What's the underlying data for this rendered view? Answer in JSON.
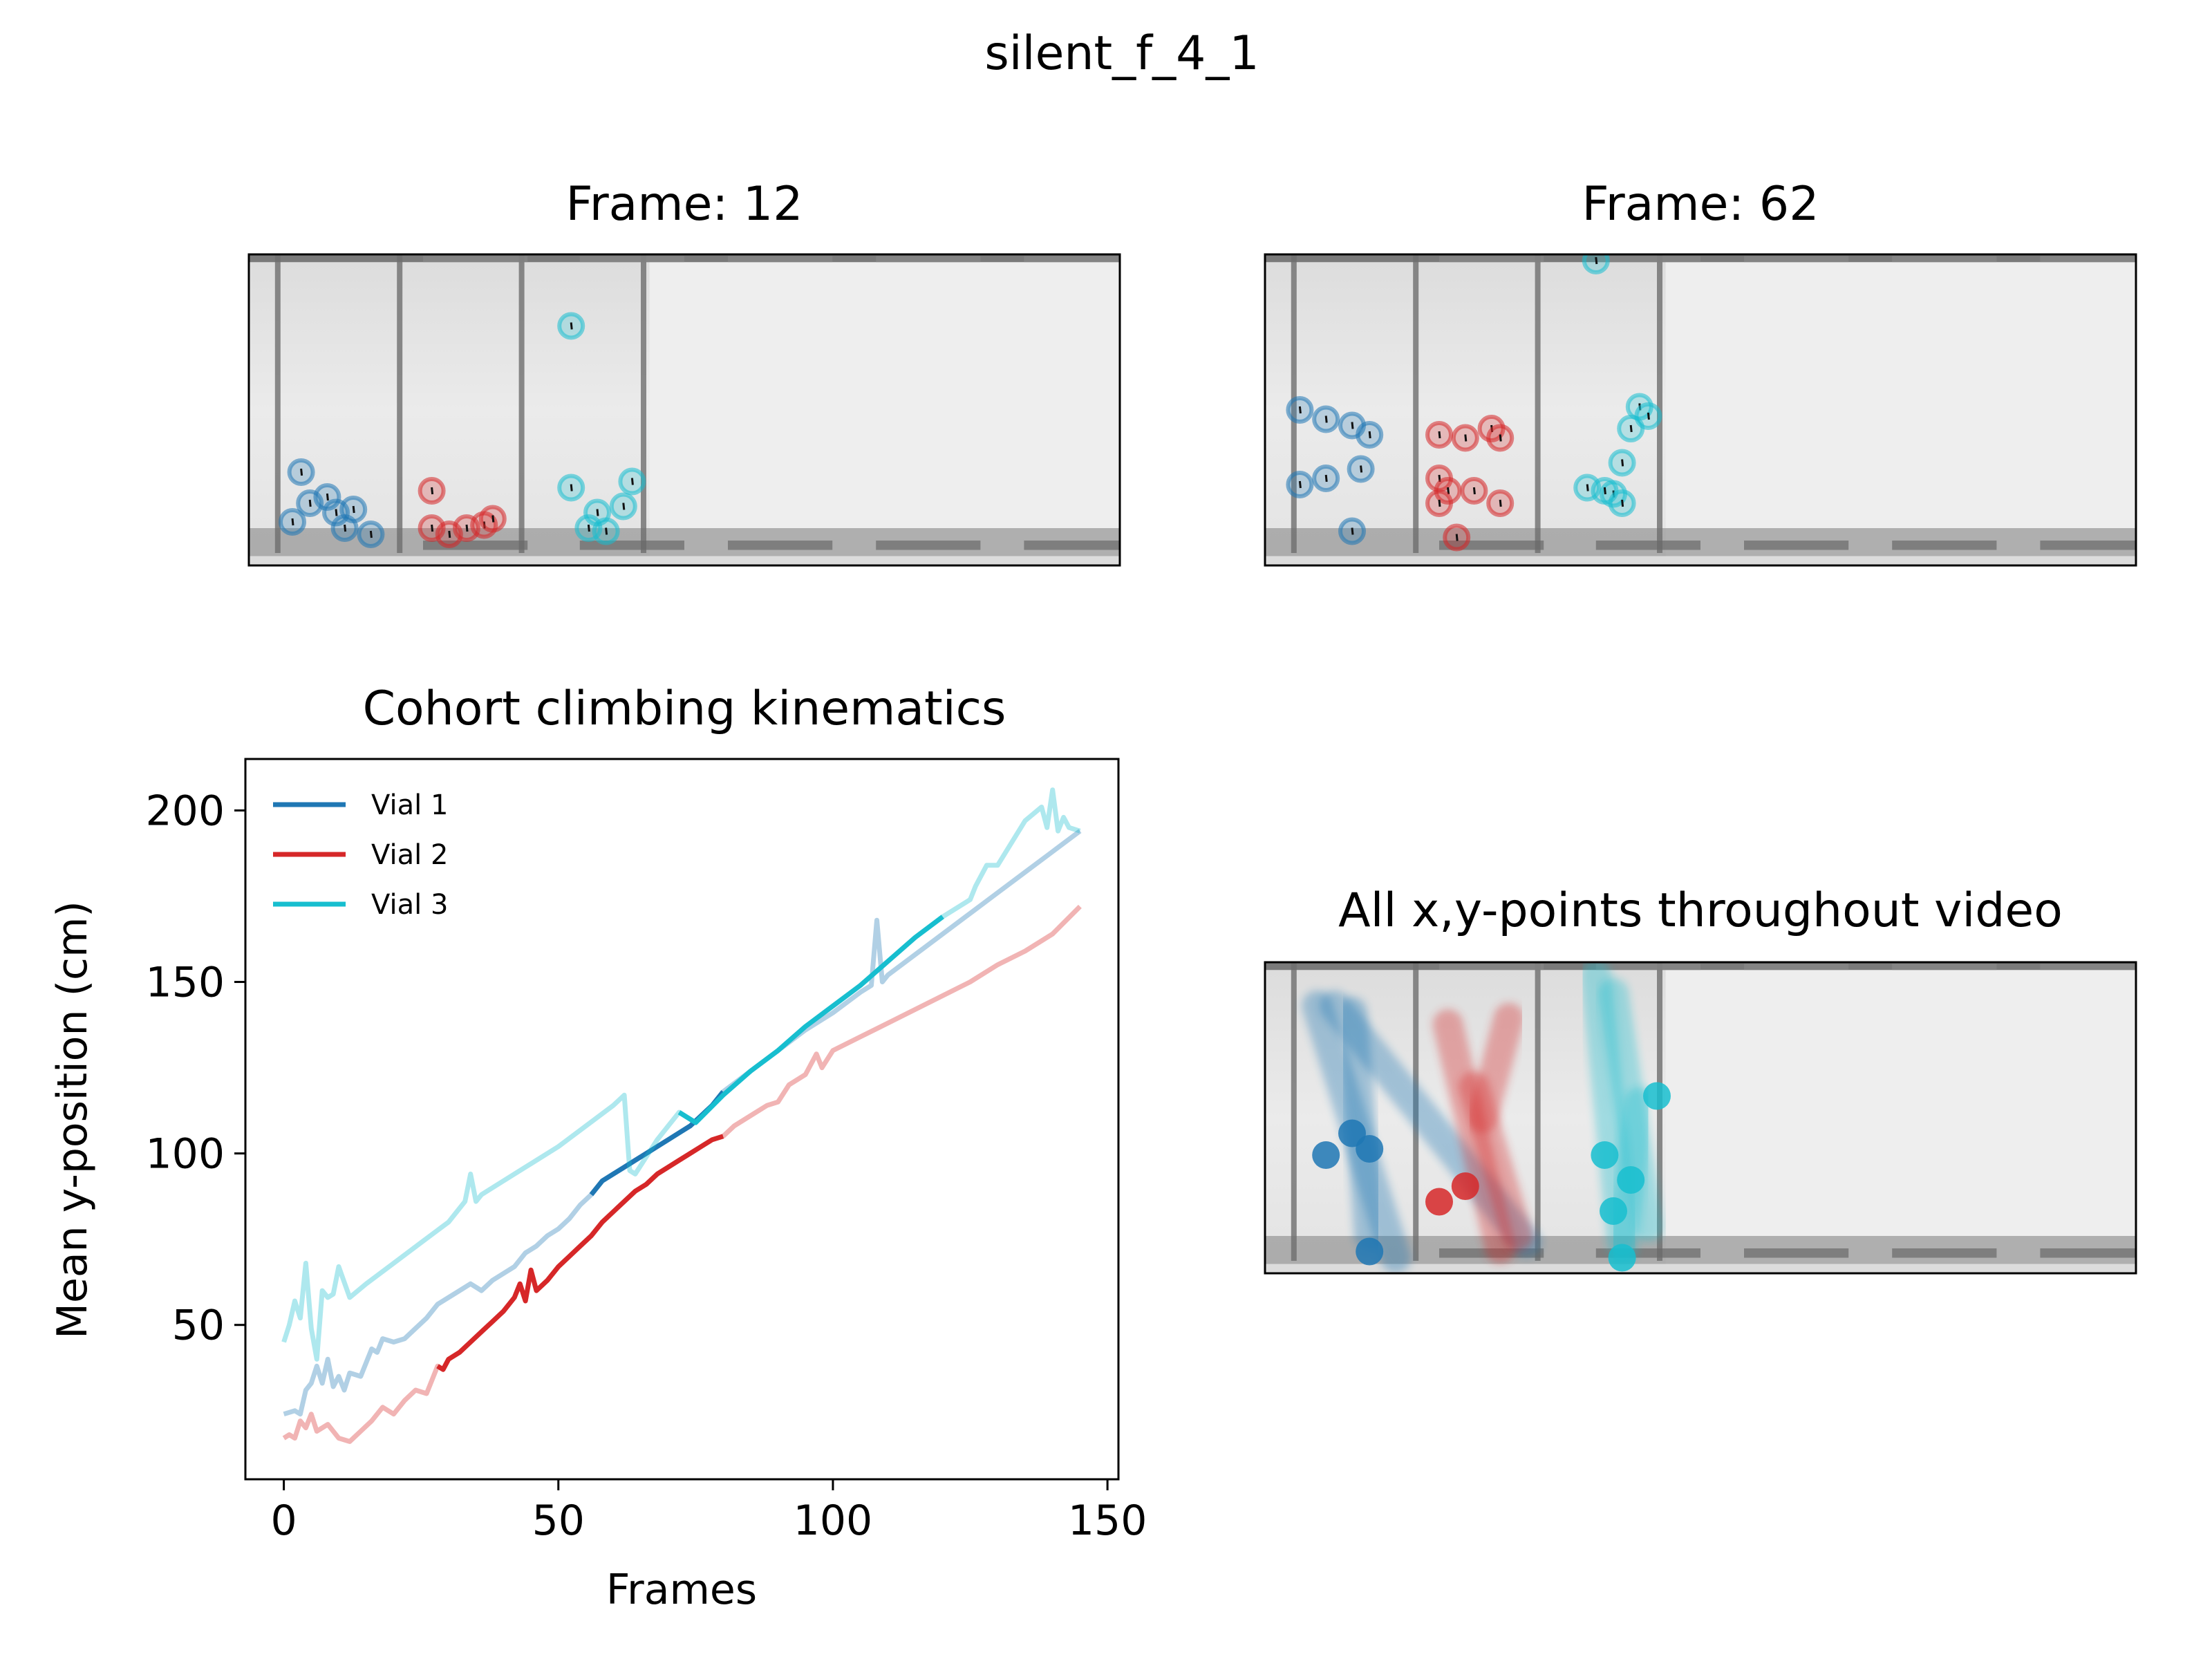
{
  "figure": {
    "suptitle": "silent_f_4_1",
    "panel_frame_a": {
      "title": "Frame: 12"
    },
    "panel_frame_b": {
      "title": "Frame: 62"
    },
    "panel_all_points": {
      "title": "All x,y-points throughout video"
    }
  },
  "colors": {
    "vial1": "#1f77b4",
    "vial2": "#d62728",
    "vial3": "#17becf"
  },
  "icons": {
    "fly_marker": "circle-marker-icon",
    "vial": "vial-tube-icon"
  },
  "chart_data": {
    "type": "line",
    "title": "Cohort climbing kinematics",
    "xlabel": "Frames",
    "ylabel": "Mean y-position (cm)",
    "xlim": [
      -7,
      152
    ],
    "ylim": [
      5,
      215
    ],
    "xticks": [
      0,
      50,
      100,
      150
    ],
    "yticks": [
      50,
      100,
      150,
      200
    ],
    "grid": false,
    "legend_position": "top-left",
    "series": [
      {
        "name": "Vial 1",
        "color": "#1f77b4",
        "x": [
          0,
          2,
          3,
          4,
          5,
          6,
          7,
          8,
          9,
          10,
          11,
          12,
          14,
          16,
          17,
          18,
          20,
          22,
          24,
          26,
          28,
          30,
          32,
          34,
          36,
          38,
          40,
          42,
          44,
          46,
          48,
          50,
          52,
          54,
          56,
          58,
          60,
          62,
          64,
          66,
          68,
          70,
          72,
          74,
          76,
          78,
          80,
          85,
          90,
          95,
          100,
          105,
          107,
          108,
          109,
          110,
          115,
          120,
          125,
          130,
          135,
          140,
          145
        ],
        "y": [
          24,
          25,
          24,
          31,
          33,
          38,
          33,
          40,
          32,
          35,
          31,
          36,
          35,
          43,
          42,
          46,
          45,
          46,
          49,
          52,
          56,
          58,
          60,
          62,
          60,
          63,
          65,
          67,
          71,
          73,
          76,
          78,
          81,
          85,
          88,
          92,
          94,
          96,
          98,
          100,
          102,
          104,
          106,
          108,
          111,
          114,
          118,
          124,
          130,
          136,
          141,
          147,
          149,
          168,
          150,
          152,
          158,
          164,
          170,
          176,
          182,
          188,
          194
        ],
        "highlight_range": [
          56,
          80
        ]
      },
      {
        "name": "Vial 2",
        "color": "#d62728",
        "x": [
          0,
          1,
          2,
          3,
          4,
          5,
          6,
          8,
          10,
          12,
          14,
          16,
          18,
          20,
          22,
          24,
          26,
          27,
          28,
          29,
          30,
          32,
          34,
          36,
          38,
          40,
          42,
          43,
          44,
          45,
          46,
          48,
          50,
          52,
          54,
          56,
          58,
          60,
          62,
          64,
          66,
          68,
          70,
          72,
          74,
          76,
          78,
          80,
          82,
          85,
          88,
          90,
          92,
          95,
          97,
          98,
          100,
          105,
          110,
          115,
          120,
          125,
          130,
          135,
          140,
          145
        ],
        "y": [
          17,
          18,
          17,
          22,
          20,
          24,
          19,
          21,
          17,
          16,
          19,
          22,
          26,
          24,
          28,
          31,
          30,
          34,
          38,
          37,
          40,
          42,
          45,
          48,
          51,
          54,
          58,
          62,
          57,
          66,
          60,
          63,
          67,
          70,
          73,
          76,
          80,
          83,
          86,
          89,
          91,
          94,
          96,
          98,
          100,
          102,
          104,
          105,
          108,
          111,
          114,
          115,
          120,
          123,
          129,
          125,
          130,
          134,
          138,
          142,
          146,
          150,
          155,
          159,
          164,
          172
        ],
        "highlight_range": [
          28,
          80
        ]
      },
      {
        "name": "Vial 3",
        "color": "#17becf",
        "x": [
          0,
          1,
          2,
          3,
          4,
          5,
          6,
          7,
          8,
          9,
          10,
          12,
          15,
          20,
          25,
          30,
          33,
          34,
          35,
          36,
          40,
          45,
          50,
          55,
          60,
          62,
          63,
          64,
          66,
          68,
          70,
          72,
          75,
          80,
          85,
          90,
          95,
          100,
          105,
          110,
          115,
          120,
          125,
          126,
          128,
          130,
          135,
          138,
          139,
          140,
          141,
          142,
          143,
          145
        ],
        "y": [
          45,
          50,
          57,
          52,
          68,
          49,
          40,
          60,
          58,
          59,
          67,
          58,
          62,
          68,
          74,
          80,
          86,
          94,
          86,
          88,
          92,
          97,
          102,
          108,
          114,
          117,
          95,
          94,
          99,
          104,
          108,
          112,
          109,
          117,
          124,
          130,
          137,
          143,
          149,
          156,
          163,
          169,
          174,
          178,
          184,
          184,
          197,
          201,
          195,
          206,
          194,
          198,
          195,
          194
        ],
        "highlight_range": [
          72,
          123
        ]
      }
    ]
  }
}
